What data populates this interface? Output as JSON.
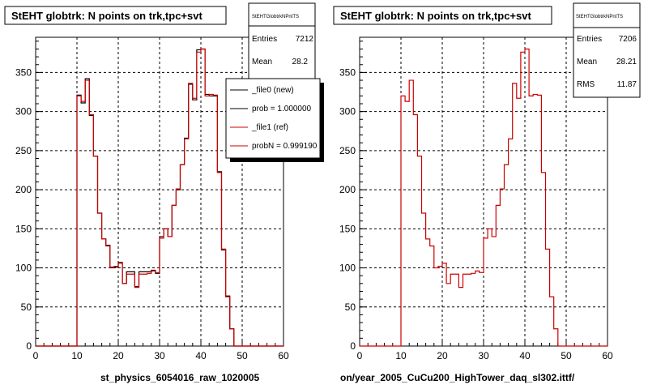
{
  "chart_data": [
    {
      "type": "histogram",
      "title": "StEHT globtrk: N points on trk,tpc+svt",
      "xlabel": "st_physics_6054016_raw_1020005",
      "xlim": [
        0,
        60
      ],
      "ylim": [
        0,
        395
      ],
      "grid": true,
      "x_ticks": [
        "0",
        "10",
        "20",
        "30",
        "40",
        "50",
        "60"
      ],
      "y_ticks": [
        "0",
        "50",
        "100",
        "150",
        "200",
        "250",
        "300",
        "350"
      ],
      "bin_width": 1,
      "bin_start": 0,
      "series": [
        {
          "name": "_file0 (new)",
          "color": "#000000",
          "values": [
            0,
            0,
            0,
            0,
            0,
            0,
            0,
            0,
            0,
            0,
            321,
            311,
            342,
            295,
            243,
            170,
            137,
            129,
            101,
            101,
            107,
            80,
            95,
            95,
            76,
            95,
            95,
            95,
            97,
            93,
            140,
            150,
            140,
            180,
            200,
            232,
            266,
            335,
            315,
            379,
            380,
            322,
            320,
            320,
            223,
            123,
            64,
            22,
            0,
            0,
            0,
            0,
            0,
            0,
            0,
            0,
            0,
            0,
            0,
            0
          ]
        },
        {
          "name": "_file1 (ref)",
          "color": "#cc0000",
          "values": [
            0,
            0,
            0,
            0,
            0,
            0,
            0,
            0,
            0,
            0,
            320,
            313,
            340,
            296,
            243,
            170,
            137,
            128,
            100,
            102,
            106,
            80,
            92,
            92,
            75,
            92,
            92,
            93,
            96,
            94,
            138,
            150,
            140,
            180,
            201,
            232,
            265,
            336,
            317,
            376,
            380,
            320,
            322,
            321,
            222,
            124,
            63,
            22,
            0,
            0,
            0,
            0,
            0,
            0,
            0,
            0,
            0,
            0,
            0,
            0
          ]
        }
      ],
      "stats": {
        "header": "StEHTGlobtrkNPntTS",
        "entries_label": "Entries",
        "entries": "7212",
        "mean_label": "Mean",
        "mean": "28.2"
      },
      "legend": {
        "placement": "top-right",
        "entries": [
          {
            "label": "_file0 (new)",
            "color": "#000000"
          },
          {
            "label": "prob = 1.000000",
            "color": "#000000"
          },
          {
            "label": "_file1 (ref)",
            "color": "#cc0000"
          },
          {
            "label": "probN = 0.999190",
            "color": "#cc0000"
          }
        ]
      }
    },
    {
      "type": "histogram",
      "title": "StEHT globtrk: N points on trk,tpc+svt",
      "xlabel": "on/year_2005_CuCu200_HighTower_daq_sl302.ittf/",
      "xlim": [
        0,
        60
      ],
      "ylim": [
        0,
        395
      ],
      "grid": true,
      "x_ticks": [
        "0",
        "10",
        "20",
        "30",
        "40",
        "50",
        "60"
      ],
      "y_ticks": [
        "0",
        "50",
        "100",
        "150",
        "200",
        "250",
        "300",
        "350"
      ],
      "bin_width": 1,
      "bin_start": 0,
      "series": [
        {
          "name": "",
          "color": "#cc0000",
          "values": [
            0,
            0,
            0,
            0,
            0,
            0,
            0,
            0,
            0,
            0,
            320,
            313,
            340,
            296,
            243,
            170,
            137,
            128,
            100,
            102,
            106,
            80,
            92,
            92,
            75,
            92,
            92,
            93,
            96,
            94,
            138,
            150,
            140,
            180,
            201,
            232,
            265,
            336,
            317,
            376,
            380,
            320,
            322,
            321,
            222,
            124,
            63,
            22,
            0,
            0,
            0,
            0,
            0,
            0,
            0,
            0,
            0,
            0,
            0,
            0
          ]
        }
      ],
      "stats": {
        "header": "StEHTGlobtrkNPntTS",
        "entries_label": "Entries",
        "entries": "7206",
        "mean_label": "Mean",
        "mean": "28.21",
        "rms_label": "RMS",
        "rms": "11.87"
      }
    }
  ]
}
